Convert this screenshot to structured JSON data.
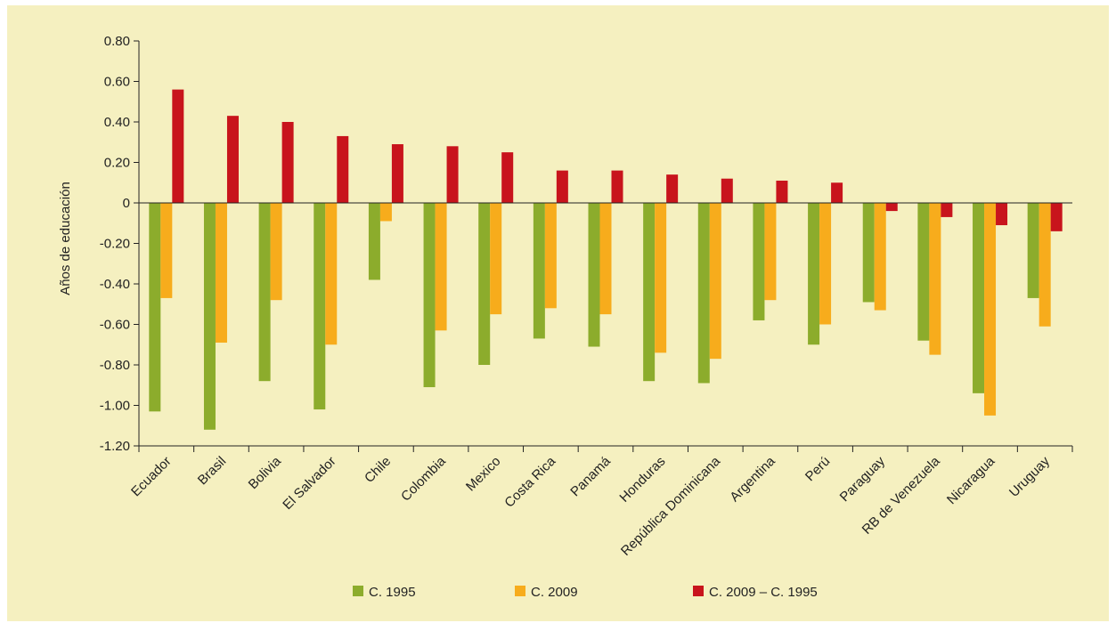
{
  "chart_data": {
    "type": "bar",
    "ylabel": "Años de educación",
    "xlabel": "",
    "ylim": [
      -1.2,
      0.8
    ],
    "yticks": [
      {
        "value": 0.8,
        "label": "0.80"
      },
      {
        "value": 0.6,
        "label": "0.60"
      },
      {
        "value": 0.4,
        "label": "0.40"
      },
      {
        "value": 0.2,
        "label": "0.20"
      },
      {
        "value": 0,
        "label": "0"
      },
      {
        "value": -0.2,
        "label": "-0.20"
      },
      {
        "value": -0.4,
        "label": "-0.40"
      },
      {
        "value": -0.6,
        "label": "-0.60"
      },
      {
        "value": -0.8,
        "label": "-0.80"
      },
      {
        "value": -1.0,
        "label": "-1.00"
      },
      {
        "value": -1.2,
        "label": "-1.20"
      }
    ],
    "categories": [
      "Ecuador",
      "Brasil",
      "Bolivia",
      "El Salvador",
      "Chile",
      "Colombia",
      "Mexico",
      "Costa Rica",
      "Panamá",
      "Honduras",
      "República Dominicana",
      "Argentina",
      "Perú",
      "Paraguay",
      "RB de Venezuela",
      "Nicaragua",
      "Uruguay"
    ],
    "series": [
      {
        "name": "C. 1995",
        "color": "#8cac2c",
        "values": [
          -1.03,
          -1.12,
          -0.88,
          -1.02,
          -0.38,
          -0.91,
          -0.8,
          -0.67,
          -0.71,
          -0.88,
          -0.89,
          -0.58,
          -0.7,
          -0.49,
          -0.68,
          -0.94,
          -0.47
        ]
      },
      {
        "name": "C. 2009",
        "color": "#f7ac1c",
        "values": [
          -0.47,
          -0.69,
          -0.48,
          -0.7,
          -0.09,
          -0.63,
          -0.55,
          -0.52,
          -0.55,
          -0.74,
          -0.77,
          -0.48,
          -0.6,
          -0.53,
          -0.75,
          -1.05,
          -0.61
        ]
      },
      {
        "name": "C. 2009 – C. 1995",
        "color": "#c8141c",
        "values": [
          0.56,
          0.43,
          0.4,
          0.33,
          0.29,
          0.28,
          0.25,
          0.16,
          0.16,
          0.14,
          0.12,
          0.11,
          0.1,
          -0.04,
          -0.07,
          -0.11,
          -0.14
        ]
      }
    ],
    "legend_position": "bottom",
    "grid": false
  },
  "colors": {
    "background": "#f5f0c0",
    "axis": "#222222"
  }
}
